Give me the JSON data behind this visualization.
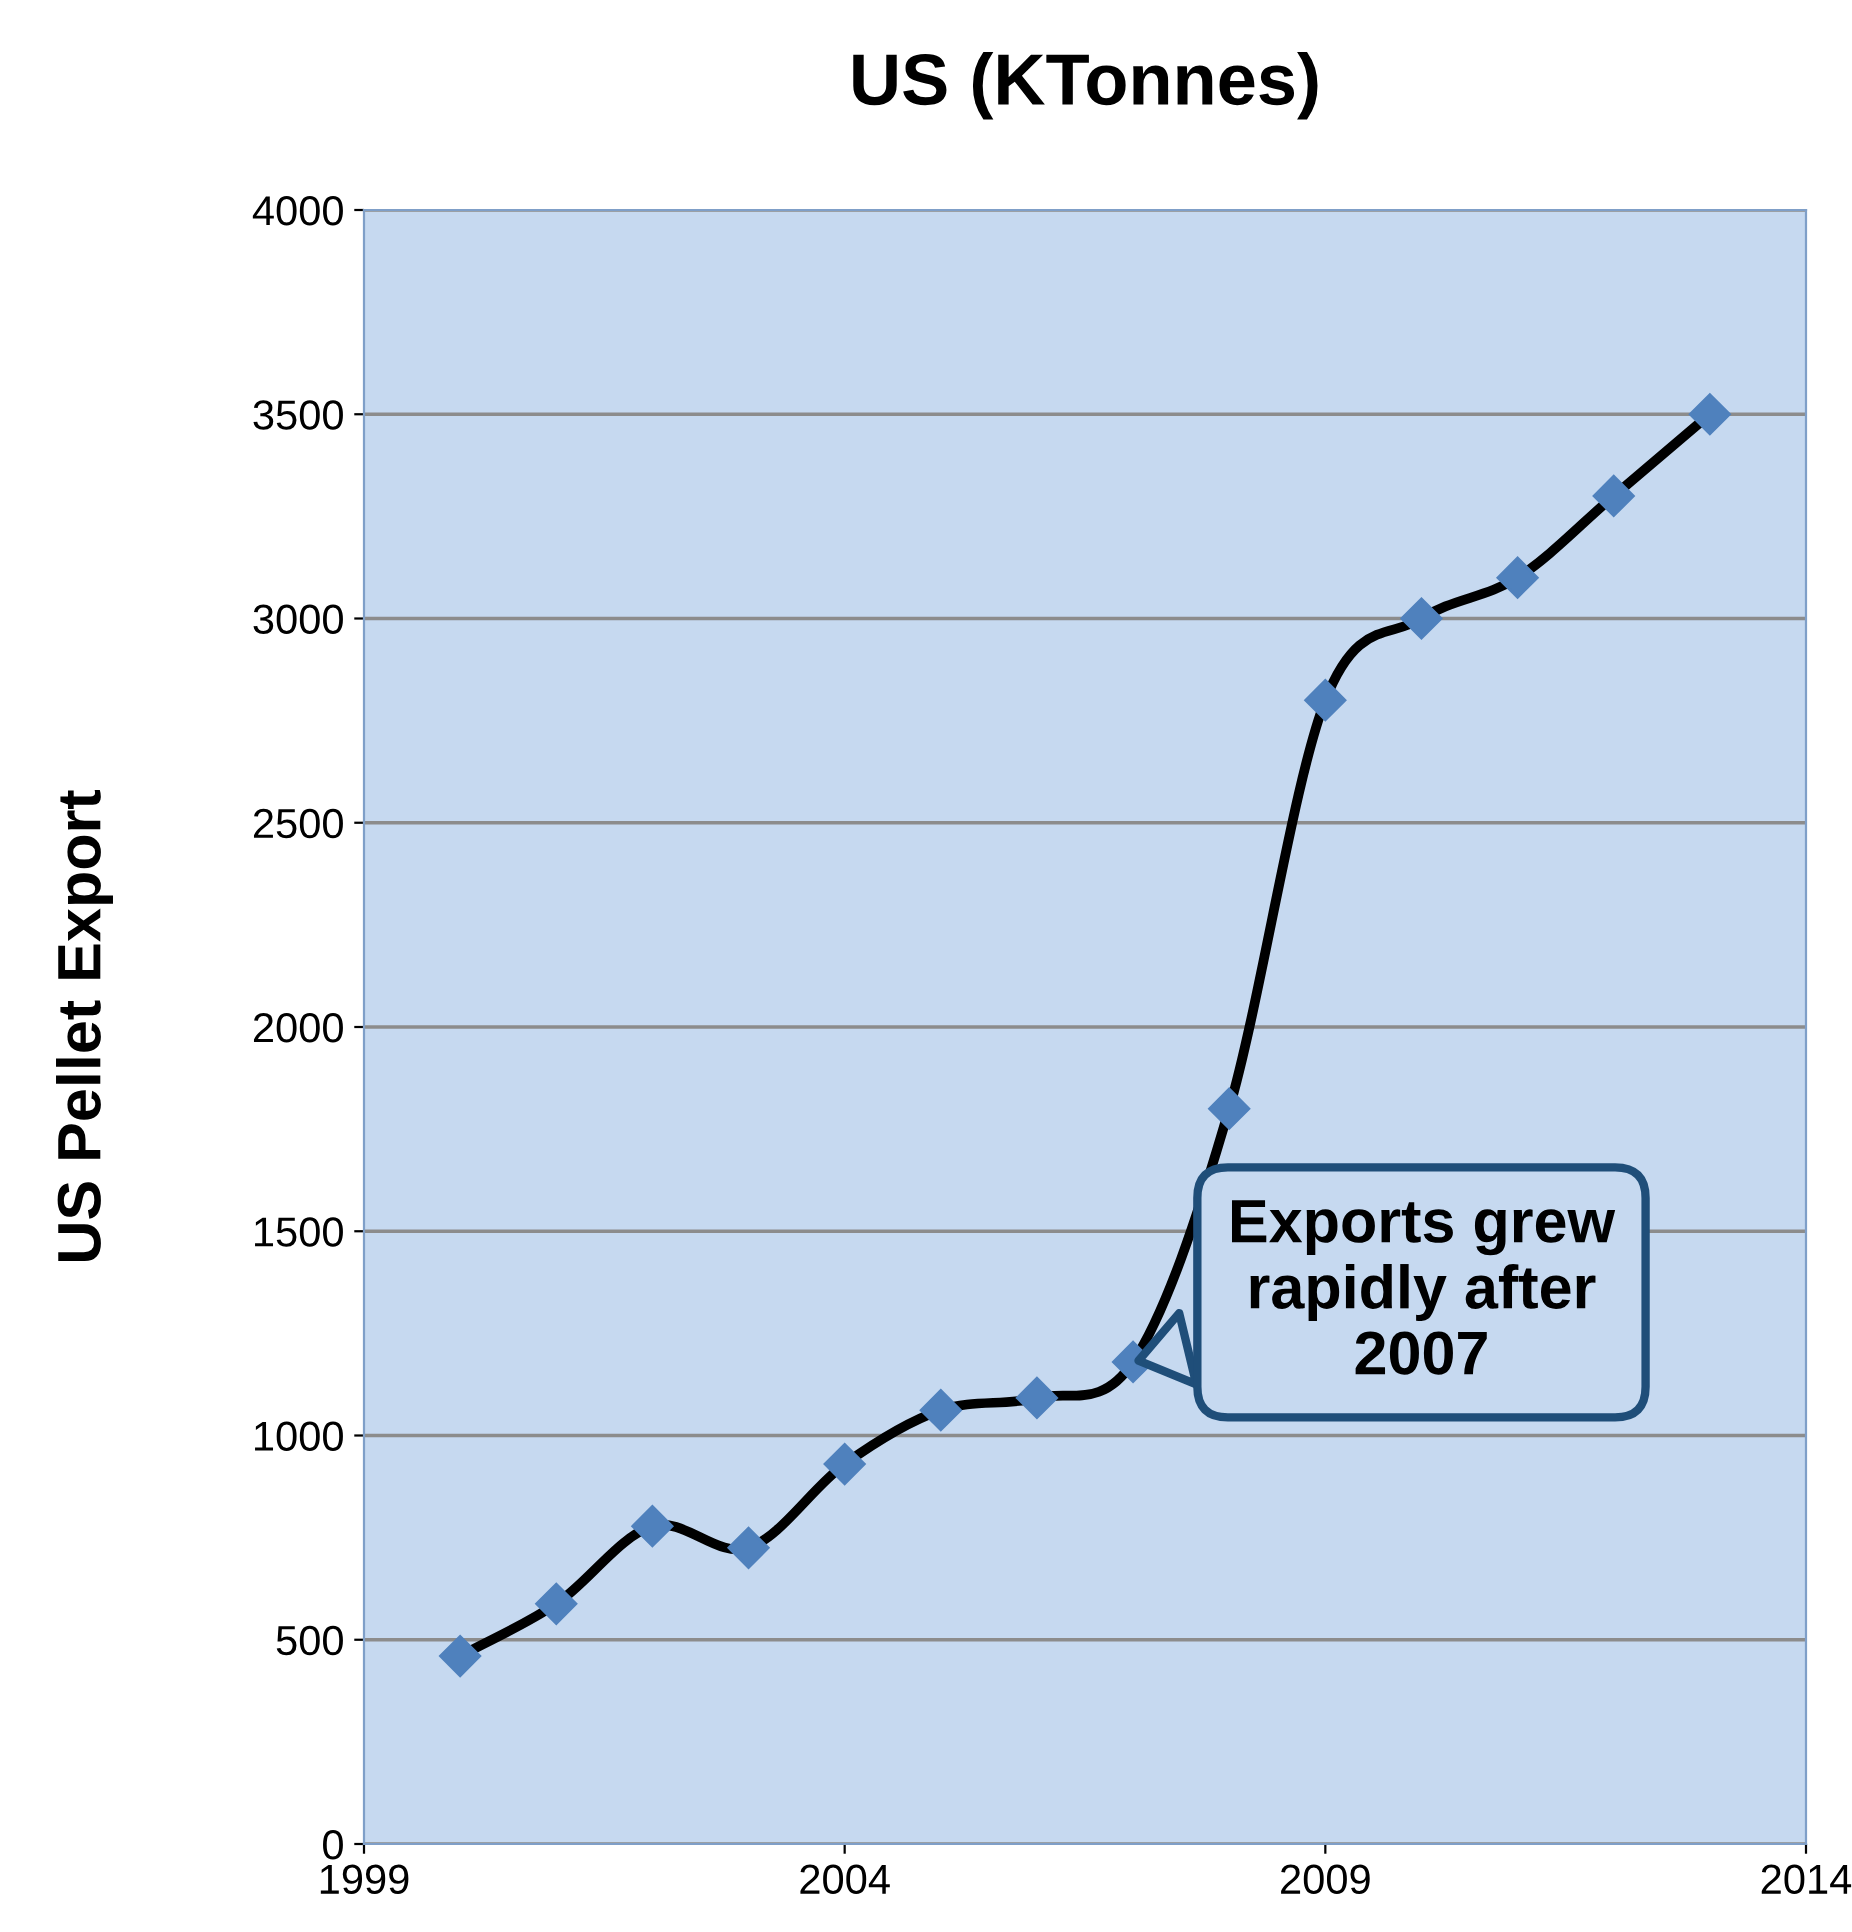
{
  "chart_data": {
    "type": "line",
    "title": "US (KTonnes)",
    "ylabel": "US Pellet Export",
    "x": [
      2000,
      2001,
      2002,
      2003,
      2004,
      2005,
      2006,
      2007,
      2008,
      2009,
      2010,
      2011,
      2012,
      2013
    ],
    "series": [
      {
        "color": "#000000",
        "values": [
          460,
          588,
          778,
          725,
          930,
          1062,
          1092,
          1180,
          1800,
          2800,
          3000,
          3100,
          3300,
          3500
        ]
      }
    ],
    "marker": "diamond",
    "line_style": "solid",
    "xlim": [
      1999,
      2014
    ],
    "xticks": [
      1999,
      2004,
      2009,
      2014
    ],
    "ylim": [
      0,
      4000
    ],
    "yticks": [
      0,
      500,
      1000,
      1500,
      2000,
      2500,
      3000,
      3500,
      4000
    ],
    "grid": "y",
    "annotations": [
      {
        "text": "Exports grew\nrapidly after\n2007",
        "x": 2007,
        "y": 1180
      }
    ]
  }
}
